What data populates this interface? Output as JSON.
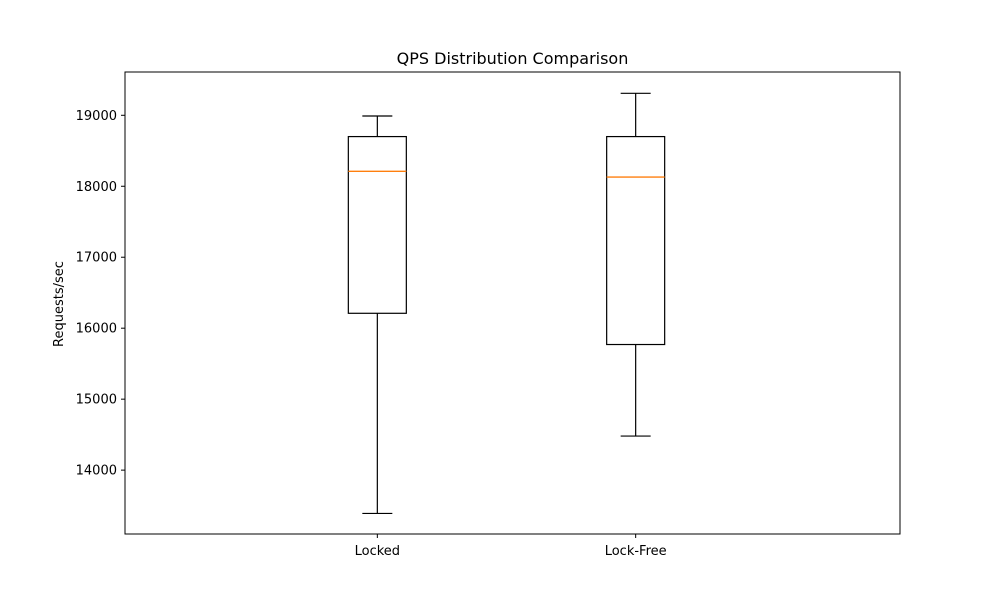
{
  "chart_data": {
    "type": "boxplot",
    "title": "QPS Distribution Comparison",
    "xlabel": "",
    "ylabel": "Requests/sec",
    "categories": [
      "Locked",
      "Lock-Free"
    ],
    "boxes": [
      {
        "category": "Locked",
        "whisker_low": 13390,
        "q1": 16210,
        "median": 18210,
        "q3": 18700,
        "whisker_high": 18990
      },
      {
        "category": "Lock-Free",
        "whisker_low": 14480,
        "q1": 15770,
        "median": 18130,
        "q3": 18700,
        "whisker_high": 19310
      }
    ],
    "ylim": [
      13100,
      19610
    ],
    "yticks": [
      14000,
      15000,
      16000,
      17000,
      18000,
      19000
    ],
    "ytick_labels": [
      "14000",
      "15000",
      "16000",
      "17000",
      "18000",
      "19000"
    ],
    "grid": false,
    "median_color": "#ff7f0e",
    "line_color": "#000000"
  }
}
